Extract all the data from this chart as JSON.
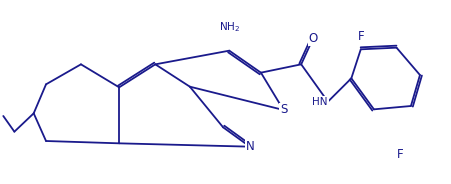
{
  "bg_color": "#ffffff",
  "line_color": "#1a1a8c",
  "text_color": "#1a1a8c",
  "figsize": [
    4.52,
    1.84
  ],
  "dpi": 100,
  "lw": 1.3,
  "fs": 7.5,
  "atoms": {
    "S_label": "S",
    "N_label": "N",
    "O_label": "O",
    "NH2_label": "NH$_2$",
    "HN_label": "HN",
    "F1_label": "F",
    "F2_label": "F"
  }
}
